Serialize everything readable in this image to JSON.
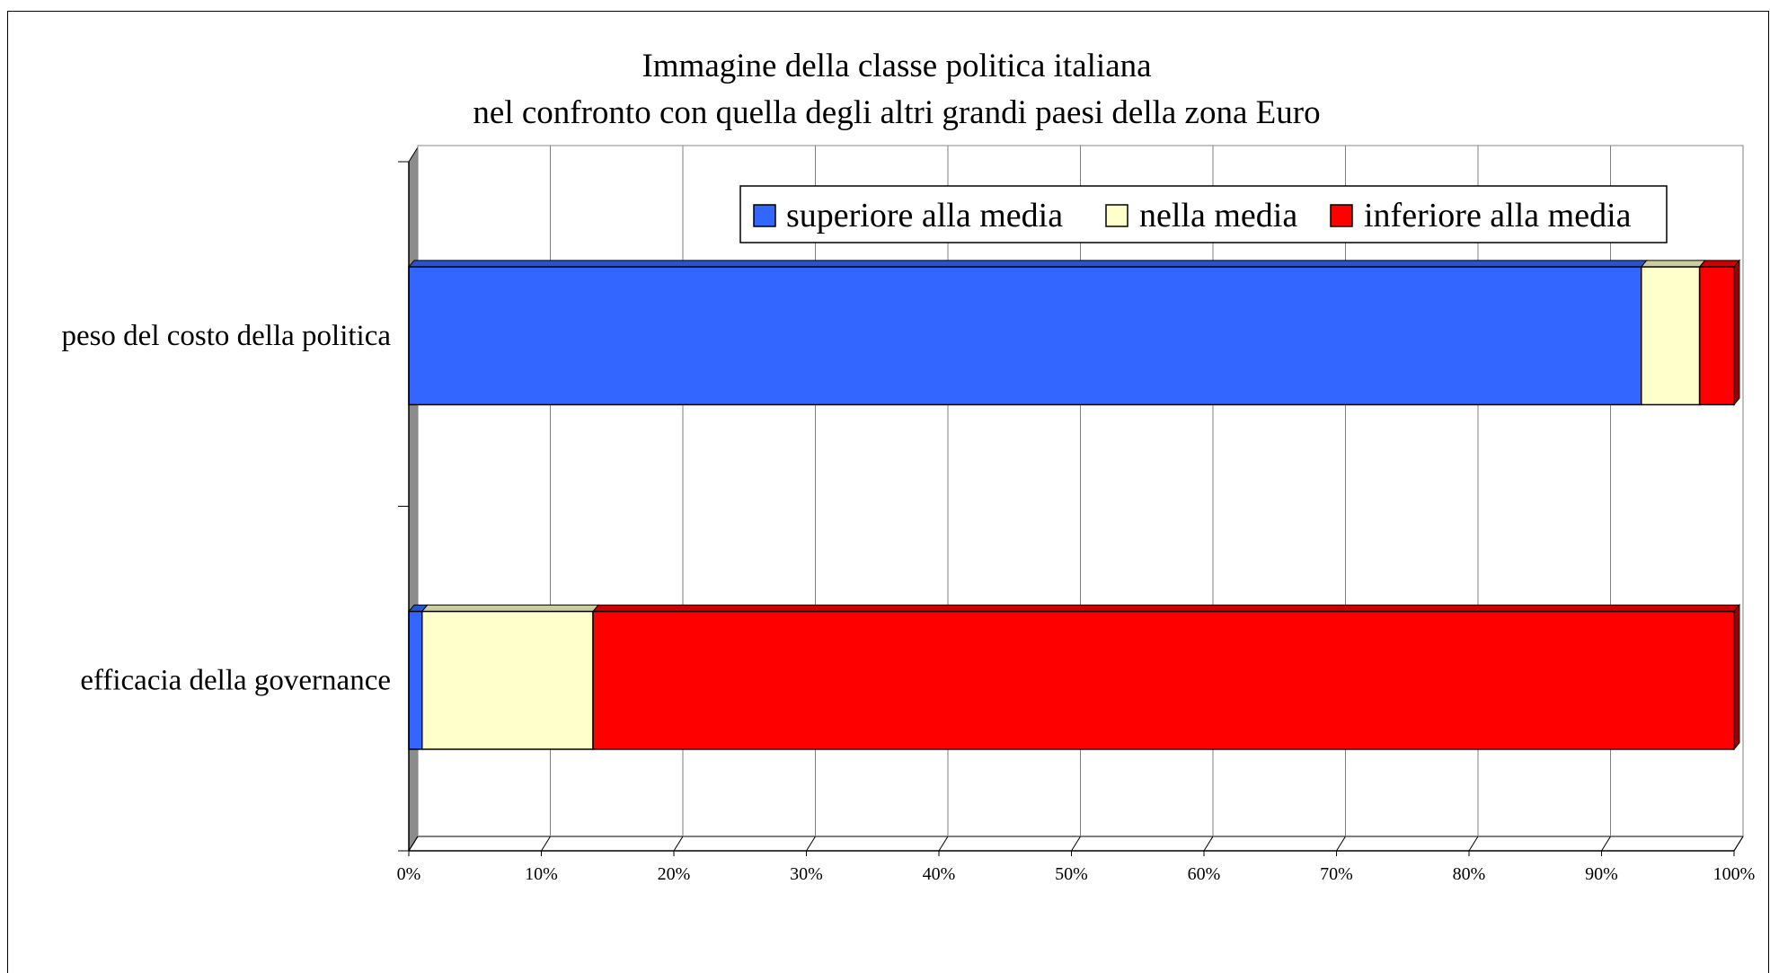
{
  "chart_data": {
    "type": "bar",
    "orientation": "horizontal",
    "stacked": "percent",
    "title": [
      "Immagine della classe politica italiana",
      "nel confronto con quella degli altri grandi paesi della zona Euro"
    ],
    "categories": [
      "peso del costo della politica",
      "efficacia della governance"
    ],
    "series": [
      {
        "name": "superiore alla media",
        "color": "#3366ff",
        "values": [
          93,
          1
        ]
      },
      {
        "name": "nella media",
        "color": "#ffffcc",
        "values": [
          4.4,
          12.9
        ]
      },
      {
        "name": "inferiore alla media",
        "color": "#ff0000",
        "values": [
          2.6,
          86.1
        ]
      }
    ],
    "x_ticks": [
      "0%",
      "10%",
      "20%",
      "30%",
      "40%",
      "50%",
      "60%",
      "70%",
      "80%",
      "90%",
      "100%"
    ],
    "xlim": [
      0,
      100
    ],
    "grid": true,
    "legend_position": "top-right"
  }
}
